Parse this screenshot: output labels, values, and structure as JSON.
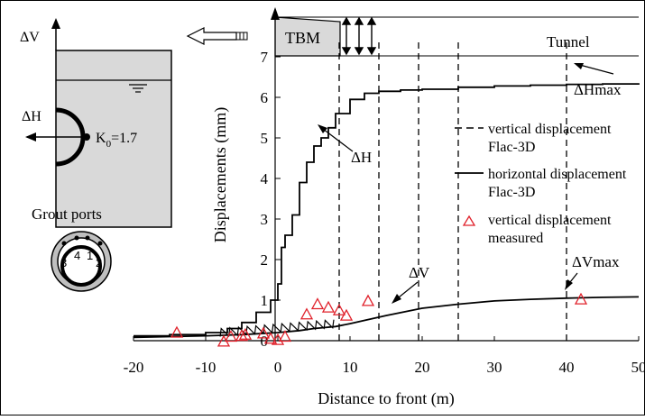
{
  "chart_data": {
    "type": "line",
    "xlabel": "Distance to front (m)",
    "ylabel": "Displacements (mm)",
    "xlim": [
      -20,
      50
    ],
    "ylim": [
      0,
      7.5
    ],
    "x_ticks": [
      "-20",
      "-10",
      "0",
      "10",
      "20",
      "30",
      "40",
      "50"
    ],
    "y_ticks": [
      "0",
      "1",
      "2",
      "3",
      "4",
      "5",
      "6",
      "7"
    ],
    "grid": false,
    "legend_position": "right",
    "series": [
      {
        "name": "vertical displacement Flac-3D",
        "style": "dashed",
        "x": [
          8.5,
          8.5,
          14,
          14,
          19.5,
          19.5,
          25,
          25,
          40,
          40
        ],
        "y": [
          0,
          7.4,
          0,
          7.4,
          0,
          7.4,
          0,
          7.4,
          0,
          7.4
        ]
      },
      {
        "name": "horizontal displacement Flac-3D",
        "style": "solid",
        "x": [
          -20,
          -15,
          -10,
          -7,
          -5,
          -3,
          -1,
          0,
          0.5,
          1,
          2,
          3,
          4,
          5,
          6,
          7,
          8,
          10,
          12,
          14,
          17,
          20,
          25,
          30,
          35,
          40,
          45,
          50
        ],
        "y": [
          0.12,
          0.15,
          0.2,
          0.3,
          0.45,
          0.7,
          1.0,
          1.4,
          2.3,
          2.6,
          3.1,
          3.9,
          4.4,
          4.8,
          5.0,
          5.25,
          5.6,
          5.95,
          6.1,
          6.15,
          6.18,
          6.2,
          6.25,
          6.28,
          6.3,
          6.32,
          6.33,
          6.35
        ]
      },
      {
        "name": "vertical displacement Flac-3D (ΔV)",
        "style": "solid",
        "x": [
          -20,
          -15,
          -10,
          -5,
          0,
          3,
          5,
          8,
          10,
          12,
          15,
          20,
          25,
          30,
          35,
          40,
          45,
          50
        ],
        "y": [
          0.08,
          0.1,
          0.12,
          0.15,
          0.2,
          0.25,
          0.3,
          0.35,
          0.42,
          0.5,
          0.62,
          0.8,
          0.9,
          0.98,
          1.02,
          1.05,
          1.07,
          1.08
        ]
      },
      {
        "name": "vertical displacement measured",
        "style": "markers",
        "color": "#e0202a",
        "x": [
          -14,
          -7.5,
          -6.5,
          -5,
          -4.5,
          -2,
          -1,
          0,
          1,
          4,
          5.5,
          7,
          8.5,
          9.5,
          12.5,
          42
        ],
        "y": [
          0.2,
          -0.02,
          0.1,
          0.12,
          0.15,
          0.18,
          0.05,
          0.02,
          0.1,
          0.65,
          0.9,
          0.82,
          0.75,
          0.62,
          0.98,
          1.02
        ]
      }
    ],
    "annotations": [
      {
        "text": "ΔH",
        "x": 9,
        "y": 3.1
      },
      {
        "text": "ΔHmax",
        "x": 41,
        "y": 5.7
      },
      {
        "text": "ΔV",
        "x": 13,
        "y": 1.45
      },
      {
        "text": "ΔVmax",
        "x": 41,
        "y": 1.45
      },
      {
        "text": "TBM"
      },
      {
        "text": "Tunnel"
      }
    ]
  },
  "labels": {
    "tbm": "TBM",
    "tunnel": "Tunnel",
    "dh": "ΔH",
    "dhmax": "ΔHmax",
    "dv": "ΔV",
    "dvmax": "ΔVmax",
    "legend_dashed_1": "vertical displacement",
    "legend_dashed_2": "Flac-3D",
    "legend_solid_1": "horizontal displacement",
    "legend_solid_2": "Flac-3D",
    "legend_marker_1": "vertical displacement",
    "legend_marker_2": "measured",
    "inset_dv": "ΔV",
    "inset_dh": "ΔH",
    "inset_k0": "K",
    "inset_k0_sub": "0",
    "inset_k0_val": "=1.7",
    "grout_title": "Grout ports",
    "port_1": "1",
    "port_2": "2",
    "port_3": "3",
    "port_4": "4"
  },
  "colors": {
    "marker": "#e0202a",
    "inset_fill": "#d9d9d9"
  }
}
